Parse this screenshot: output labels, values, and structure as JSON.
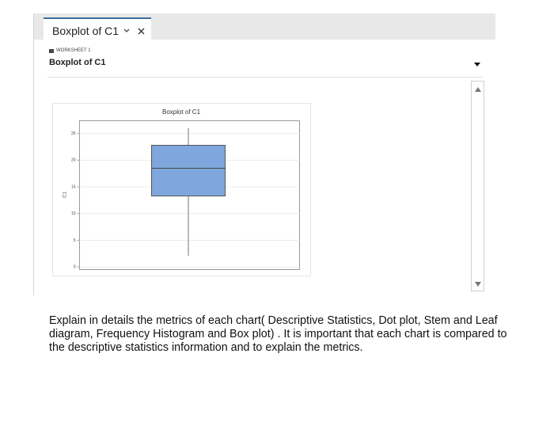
{
  "tab": {
    "label": "Boxplot of C1"
  },
  "worksheet": {
    "label": "WORKSHEET 1",
    "title": "Boxplot of C1"
  },
  "chart_data": {
    "type": "box",
    "title": "Boxplot of C1",
    "y_label": "C1",
    "ylim": [
      -0.5,
      27.4
    ],
    "yticks": [
      0,
      5,
      10,
      15,
      20,
      25
    ],
    "grid": true,
    "color": "#7fa7dd",
    "box": {
      "whisker_low": 2.1,
      "q1": 13.3,
      "median": 18.5,
      "q3": 22.8,
      "whisker_high": 26.0
    }
  },
  "question": {
    "text": "Explain in details the metrics of each chart( Descriptive Statistics, Dot plot, Stem and Leaf diagram, Frequency Histogram and Box plot) . It is important that each chart is compared to the descriptive statistics information and to explain the metrics."
  }
}
